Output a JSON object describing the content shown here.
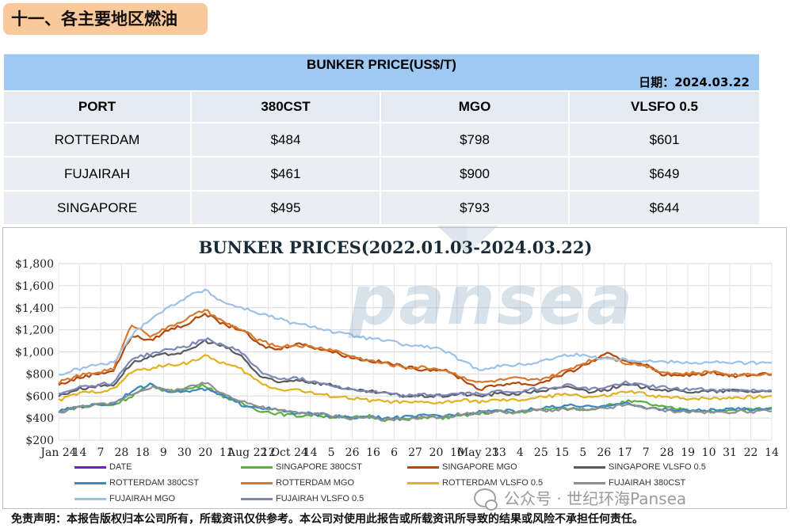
{
  "section_title": "十一、各主要地区燃油",
  "table": {
    "title": "BUNKER PRICE(US$/T)",
    "date": "日期：2024.03.22",
    "headers": [
      "PORT",
      "380CST",
      "MGO",
      "VLSFO 0.5"
    ],
    "rows": [
      [
        "ROTTERDAM",
        "$484",
        "$798",
        "$601"
      ],
      [
        "FUJAIRAH",
        "$461",
        "$900",
        "$649"
      ],
      [
        "SINGAPORE",
        "$495",
        "$793",
        "$644"
      ]
    ]
  },
  "watermark": "pansea",
  "chart_data": {
    "type": "line",
    "title": "BUNKER PRICES(2022.01.03-2024.03.22)",
    "ylim": [
      200,
      1800
    ],
    "yticks": [
      "$200",
      "$400",
      "$600",
      "$800",
      "$1,000",
      "$1,200",
      "$1,400",
      "$1,600",
      "$1,800"
    ],
    "xticks": [
      "Jan 24",
      "14",
      "7",
      "28",
      "18",
      "9",
      "30",
      "20",
      "11",
      "Aug 22",
      "12",
      "Oct 24",
      "14",
      "5",
      "26",
      "16",
      "6",
      "27",
      "20",
      "10",
      "May 23",
      "13",
      "4",
      "25",
      "15",
      "5",
      "26",
      "17",
      "7",
      "28",
      "19",
      "10",
      "31",
      "22",
      "14"
    ],
    "grid": true,
    "legend_position": "bottom",
    "series": [
      {
        "name": "DATE",
        "color": "#6a1fd1",
        "values": []
      },
      {
        "name": "SINGAPORE 380CST",
        "color": "#58b041",
        "values": [
          450,
          500,
          520,
          520,
          600,
          700,
          640,
          660,
          700,
          600,
          530,
          470,
          440,
          420,
          430,
          410,
          400,
          420,
          380,
          390,
          410,
          400,
          420,
          440,
          460,
          450,
          470,
          480,
          490,
          480,
          510,
          550,
          540,
          500,
          480,
          470,
          460,
          470,
          480,
          495
        ]
      },
      {
        "name": "SINGAPORE MGO",
        "color": "#b0480f",
        "values": [
          700,
          760,
          800,
          830,
          1150,
          1100,
          1200,
          1250,
          1350,
          1250,
          1200,
          1060,
          1020,
          1080,
          1040,
          1000,
          950,
          920,
          900,
          860,
          840,
          840,
          760,
          660,
          700,
          720,
          700,
          760,
          820,
          900,
          980,
          920,
          890,
          800,
          780,
          800,
          810,
          780,
          800,
          793
        ]
      },
      {
        "name": "SINGAPORE VLSFO 0.5",
        "color": "#5a5a5a",
        "values": [
          600,
          660,
          690,
          700,
          900,
          950,
          980,
          1000,
          1100,
          1050,
          960,
          780,
          720,
          750,
          720,
          700,
          650,
          640,
          620,
          600,
          600,
          600,
          620,
          600,
          620,
          620,
          640,
          660,
          680,
          640,
          660,
          700,
          680,
          660,
          640,
          640,
          640,
          650,
          640,
          644
        ]
      },
      {
        "name": "ROTTERDAM 380CST",
        "color": "#3b86c7",
        "values": [
          460,
          500,
          520,
          530,
          650,
          700,
          650,
          640,
          660,
          600,
          520,
          500,
          470,
          440,
          440,
          420,
          400,
          410,
          400,
          410,
          420,
          420,
          440,
          460,
          470,
          460,
          480,
          500,
          510,
          500,
          520,
          530,
          500,
          480,
          470,
          470,
          470,
          480,
          480,
          484
        ]
      },
      {
        "name": "ROTTERDAM MGO",
        "color": "#d8782c",
        "values": [
          720,
          780,
          810,
          850,
          1250,
          1150,
          1220,
          1300,
          1380,
          1270,
          1200,
          1100,
          1050,
          1060,
          1040,
          1020,
          960,
          920,
          890,
          860,
          860,
          840,
          780,
          720,
          740,
          760,
          740,
          780,
          850,
          920,
          960,
          900,
          880,
          820,
          800,
          810,
          820,
          790,
          800,
          798
        ]
      },
      {
        "name": "ROTTERDAM VLSFO 0.5",
        "color": "#e0b21f",
        "values": [
          560,
          620,
          640,
          660,
          820,
          850,
          880,
          900,
          960,
          900,
          840,
          720,
          660,
          660,
          620,
          600,
          580,
          560,
          550,
          540,
          540,
          540,
          560,
          550,
          560,
          560,
          580,
          600,
          620,
          590,
          600,
          640,
          620,
          590,
          580,
          580,
          580,
          590,
          590,
          601
        ]
      },
      {
        "name": "FUJAIRAH  380CST",
        "color": "#8f8f8f",
        "values": [
          450,
          500,
          520,
          530,
          620,
          680,
          650,
          670,
          720,
          620,
          560,
          500,
          470,
          450,
          440,
          420,
          400,
          410,
          380,
          390,
          410,
          410,
          430,
          450,
          460,
          450,
          470,
          470,
          480,
          470,
          490,
          520,
          500,
          470,
          460,
          455,
          450,
          460,
          460,
          461
        ]
      },
      {
        "name": "FUJAIRAH MGO",
        "color": "#9ec1e6",
        "values": [
          790,
          840,
          880,
          900,
          1150,
          1300,
          1400,
          1500,
          1560,
          1450,
          1400,
          1350,
          1300,
          1250,
          1230,
          1180,
          1150,
          1120,
          1100,
          1060,
          1050,
          1020,
          920,
          840,
          870,
          880,
          900,
          940,
          980,
          960,
          940,
          930,
          920,
          910,
          910,
          900,
          905,
          900,
          900,
          900
        ]
      },
      {
        "name": "FUJAIRAH VLSFO 0.5",
        "color": "#7c87b5",
        "values": [
          620,
          680,
          700,
          720,
          940,
          980,
          1020,
          1050,
          1120,
          1060,
          1000,
          820,
          760,
          760,
          730,
          700,
          660,
          640,
          620,
          600,
          610,
          610,
          620,
          620,
          640,
          640,
          660,
          680,
          700,
          660,
          680,
          720,
          700,
          680,
          660,
          660,
          655,
          650,
          650,
          649
        ]
      }
    ]
  },
  "disclaimer": "免责声明：本报告版权归本公司所有，所载资讯仅供参考。本公司对使用此报告或所载资讯所导致的结果或风险不承担任何责任。",
  "wechat_label": "公众号 · 世纪环海Pansea"
}
